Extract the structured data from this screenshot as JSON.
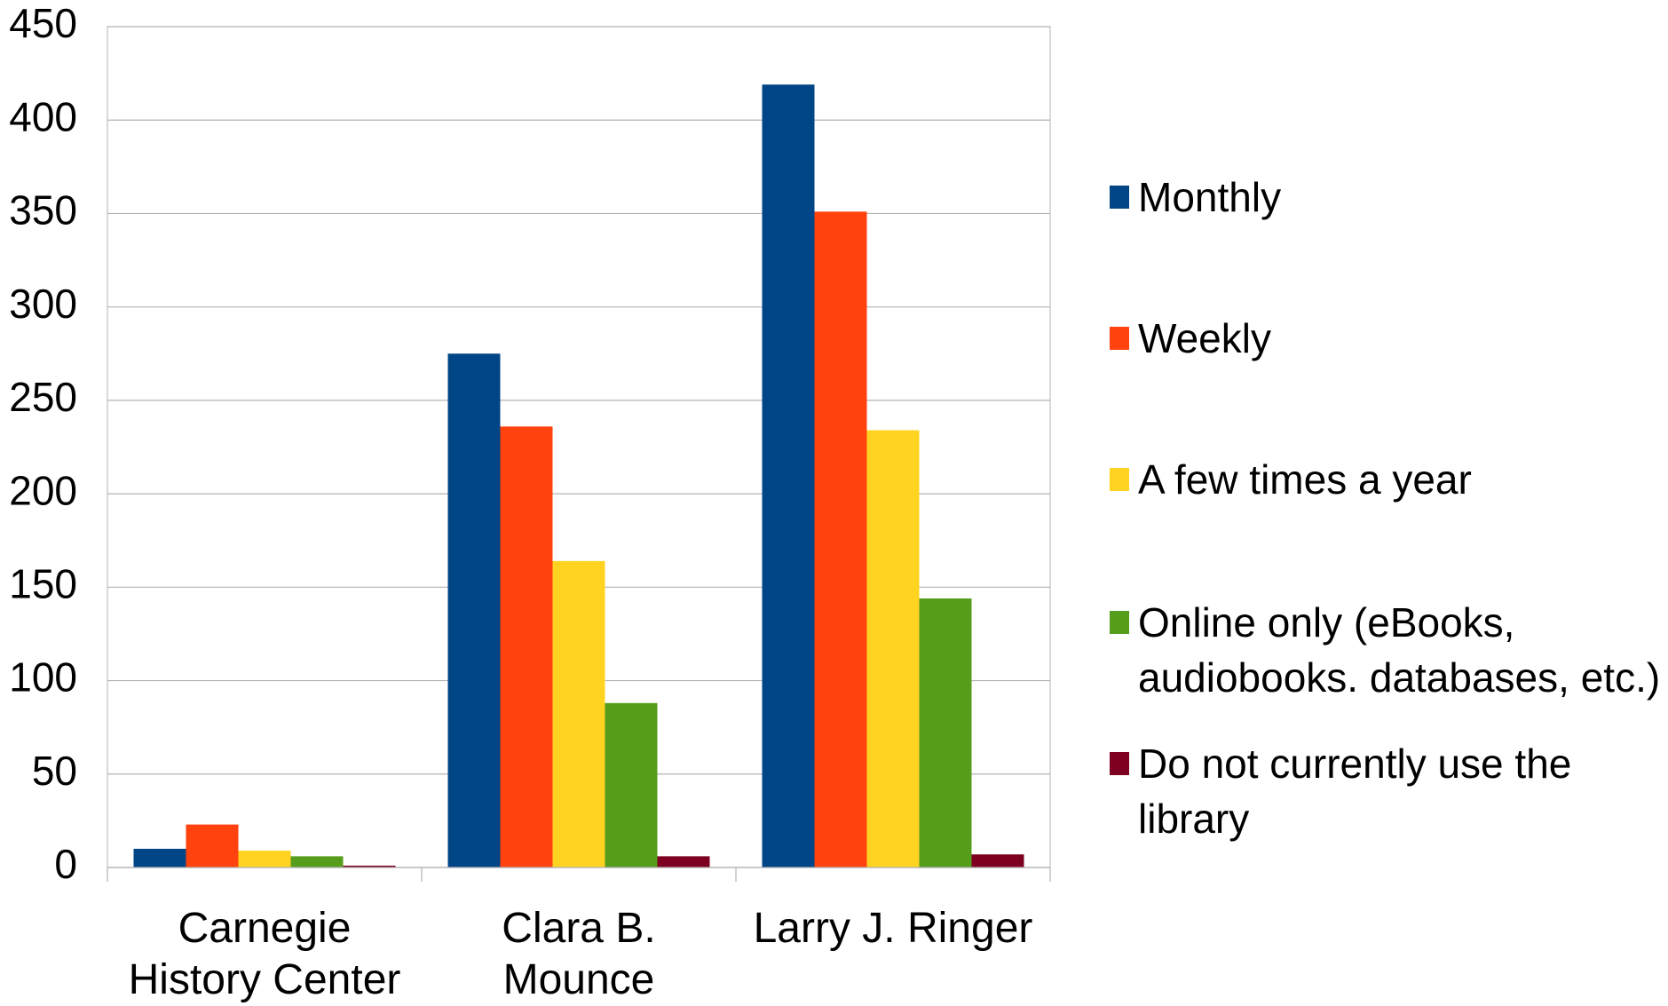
{
  "chart_data": {
    "type": "bar",
    "categories": [
      "Carnegie History Center",
      "Clara B. Mounce",
      "Larry J. Ringer"
    ],
    "series": [
      {
        "name": "Monthly",
        "color": "#004586",
        "values": [
          10,
          275,
          419
        ]
      },
      {
        "name": "Weekly",
        "color": "#ff420e",
        "values": [
          23,
          236,
          351
        ]
      },
      {
        "name": "A few times a year",
        "color": "#ffd320",
        "values": [
          9,
          164,
          234
        ]
      },
      {
        "name": "Online only (eBooks,\naudiobooks. databases, etc.)",
        "color": "#579d1c",
        "values": [
          6,
          88,
          144
        ]
      },
      {
        "name": "Do not currently use the library",
        "color": "#7e0021",
        "values": [
          1,
          6,
          7
        ]
      }
    ],
    "ylim": [
      0,
      450
    ],
    "yticks": [
      0,
      50,
      100,
      150,
      200,
      250,
      300,
      350,
      400,
      450
    ],
    "grid": true,
    "legend": "right"
  }
}
